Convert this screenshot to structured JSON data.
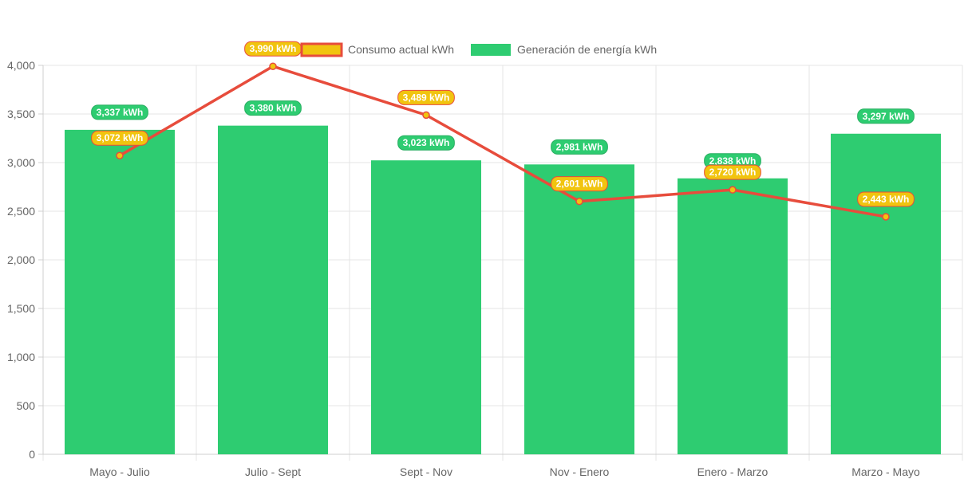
{
  "chart_data": {
    "type": "bar",
    "title": "",
    "xlabel": "",
    "ylabel": "",
    "ylim": [
      0,
      4000
    ],
    "yticks": [
      0,
      500,
      1000,
      1500,
      2000,
      2500,
      3000,
      3500,
      4000
    ],
    "ytick_labels": [
      "0",
      "500",
      "1,000",
      "1,500",
      "2,000",
      "2,500",
      "3,000",
      "3,500",
      "4,000"
    ],
    "grid": true,
    "legend_position": "top-center",
    "categories": [
      "Mayo - Julio",
      "Julio - Sept",
      "Sept - Nov",
      "Nov - Enero",
      "Enero - Marzo",
      "Marzo - Mayo"
    ],
    "series": [
      {
        "name": "Consumo actual kWh",
        "type": "line",
        "color": "#e74c3c",
        "point_color": "#f1c40f",
        "values": [
          3072,
          3990,
          3489,
          2601,
          2720,
          2443
        ],
        "labels": [
          "3,072 kWh",
          "3,990 kWh",
          "3,489 kWh",
          "2,601 kWh",
          "2,720 kWh",
          "2,443 kWh"
        ]
      },
      {
        "name": "Generación de energía kWh",
        "type": "bar",
        "color": "#2ecc71",
        "values": [
          3337,
          3380,
          3023,
          2981,
          2838,
          3297
        ],
        "labels": [
          "3,337 kWh",
          "3,380 kWh",
          "3,023 kWh",
          "2,981 kWh",
          "2,838 kWh",
          "3,297 kWh"
        ]
      }
    ]
  }
}
